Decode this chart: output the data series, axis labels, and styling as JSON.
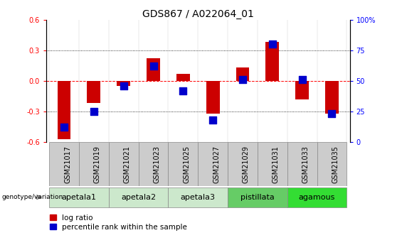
{
  "title": "GDS867 / A022064_01",
  "samples": [
    "GSM21017",
    "GSM21019",
    "GSM21021",
    "GSM21023",
    "GSM21025",
    "GSM21027",
    "GSM21029",
    "GSM21031",
    "GSM21033",
    "GSM21035"
  ],
  "log_ratio": [
    -0.57,
    -0.22,
    -0.05,
    0.22,
    0.07,
    -0.32,
    0.13,
    0.38,
    -0.18,
    -0.32
  ],
  "percentile_rank": [
    12,
    25,
    46,
    62,
    42,
    18,
    51,
    80,
    51,
    23
  ],
  "groups": [
    {
      "name": "apetala1",
      "indices": [
        0,
        1
      ],
      "color": "#cce8cc"
    },
    {
      "name": "apetala2",
      "indices": [
        2,
        3
      ],
      "color": "#cce8cc"
    },
    {
      "name": "apetala3",
      "indices": [
        4,
        5
      ],
      "color": "#cce8cc"
    },
    {
      "name": "pistillata",
      "indices": [
        6,
        7
      ],
      "color": "#66cc66"
    },
    {
      "name": "agamous",
      "indices": [
        8,
        9
      ],
      "color": "#33dd33"
    }
  ],
  "ylim_left": [
    -0.6,
    0.6
  ],
  "ylim_right": [
    0,
    100
  ],
  "yticks_left": [
    -0.6,
    -0.3,
    0.0,
    0.3,
    0.6
  ],
  "yticks_right": [
    0,
    25,
    50,
    75,
    100
  ],
  "bar_color": "#cc0000",
  "dot_color": "#0000cc",
  "bar_width": 0.45,
  "dot_size": 50,
  "title_fontsize": 10,
  "tick_fontsize": 7,
  "group_label_fontsize": 8,
  "legend_fontsize": 7.5,
  "background_color": "#ffffff",
  "genotype_label": "genotype/variation",
  "sample_box_color": "#cccccc",
  "sample_box_edge": "#888888"
}
